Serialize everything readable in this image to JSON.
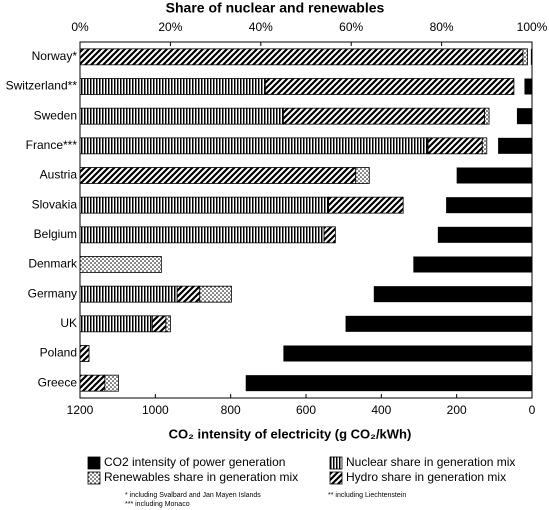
{
  "chart_data": {
    "type": "bar",
    "orientation": "horizontal",
    "title": "Share of nuclear and renewables",
    "x2_label": "CO₂ intensity of electricity (g CO₂/kWh)",
    "categories": [
      "Norway*",
      "Switzerland**",
      "Sweden",
      "France***",
      "Austria",
      "Slovakia",
      "Belgium",
      "Denmark",
      "Germany",
      "UK",
      "Poland",
      "Greece"
    ],
    "series": [
      {
        "name": "CO2 intensity of power generation",
        "pattern": "solid",
        "axis": "x2",
        "values": [
          3,
          20,
          40,
          90,
          200,
          228,
          250,
          315,
          420,
          495,
          660,
          760
        ]
      },
      {
        "name": "Nuclear share in generation mix",
        "pattern": "vertical",
        "values": [
          0,
          41,
          45,
          77,
          0,
          55,
          54,
          0,
          21.5,
          16,
          0,
          0
        ]
      },
      {
        "name": "Hydro share in generation mix",
        "pattern": "diagonal",
        "values": [
          98,
          55,
          44.5,
          12,
          61,
          16.5,
          2.5,
          0,
          5,
          3,
          2,
          5.5
        ]
      },
      {
        "name": "Renewables share in generation mix",
        "pattern": "dots",
        "values": [
          1,
          0,
          1,
          1,
          3,
          0,
          0,
          18,
          7,
          1,
          0,
          3
        ]
      }
    ],
    "xlim": [
      0,
      100
    ],
    "xticks": [
      {
        "value": 0,
        "label": "0%"
      },
      {
        "value": 20,
        "label": "20%"
      },
      {
        "value": 40,
        "label": "40%"
      },
      {
        "value": 60,
        "label": "60%"
      },
      {
        "value": 80,
        "label": "80%"
      },
      {
        "value": 100,
        "label": "100%"
      }
    ],
    "x2lim": [
      1200,
      0
    ],
    "x2ticks": [
      1200,
      1000,
      800,
      600,
      400,
      200,
      0
    ],
    "notes": [
      "* including Svalbard and Jan Mayen Islands",
      "** including Liechtenstein",
      "*** including Monaco"
    ]
  }
}
